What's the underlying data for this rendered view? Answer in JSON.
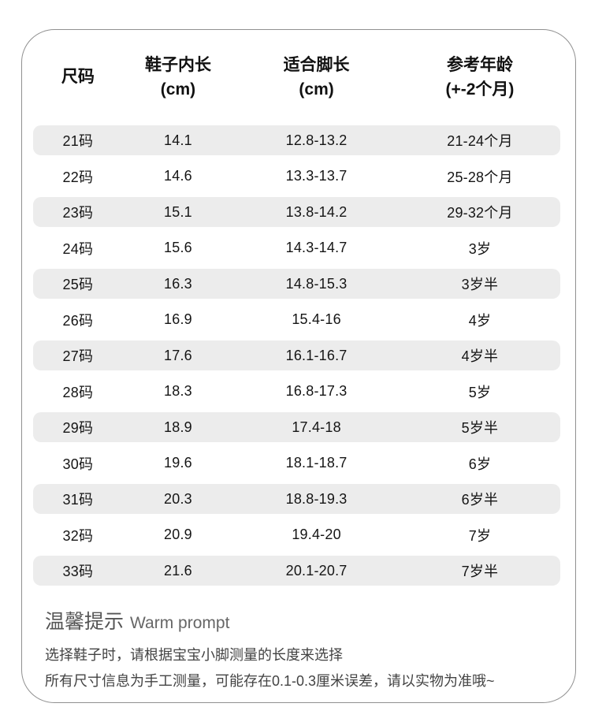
{
  "table": {
    "headers": [
      "尺码",
      "鞋子内长\n(cm)",
      "适合脚长\n(cm)",
      "参考年龄\n(+-2个月)"
    ],
    "rows": [
      {
        "size": "21码",
        "inner_length": "14.1",
        "foot_length": "12.8-13.2",
        "age": "21-24个月"
      },
      {
        "size": "22码",
        "inner_length": "14.6",
        "foot_length": "13.3-13.7",
        "age": "25-28个月"
      },
      {
        "size": "23码",
        "inner_length": "15.1",
        "foot_length": "13.8-14.2",
        "age": "29-32个月"
      },
      {
        "size": "24码",
        "inner_length": "15.6",
        "foot_length": "14.3-14.7",
        "age": "3岁"
      },
      {
        "size": "25码",
        "inner_length": "16.3",
        "foot_length": "14.8-15.3",
        "age": "3岁半"
      },
      {
        "size": "26码",
        "inner_length": "16.9",
        "foot_length": "15.4-16",
        "age": "4岁"
      },
      {
        "size": "27码",
        "inner_length": "17.6",
        "foot_length": "16.1-16.7",
        "age": "4岁半"
      },
      {
        "size": "28码",
        "inner_length": "18.3",
        "foot_length": "16.8-17.3",
        "age": "5岁"
      },
      {
        "size": "29码",
        "inner_length": "18.9",
        "foot_length": "17.4-18",
        "age": "5岁半"
      },
      {
        "size": "30码",
        "inner_length": "19.6",
        "foot_length": "18.1-18.7",
        "age": "6岁"
      },
      {
        "size": "31码",
        "inner_length": "20.3",
        "foot_length": "18.8-19.3",
        "age": "6岁半"
      },
      {
        "size": "32码",
        "inner_length": "20.9",
        "foot_length": "19.4-20",
        "age": "7岁"
      },
      {
        "size": "33码",
        "inner_length": "21.6",
        "foot_length": "20.1-20.7",
        "age": "7岁半"
      }
    ]
  },
  "footer": {
    "title_zh": "温馨提示",
    "title_en": "Warm prompt",
    "lines": [
      "选择鞋子时，请根据宝宝小脚测量的长度来选择",
      "所有尺寸信息为手工测量，可能存在0.1-0.3厘米误差，请以实物为准哦~"
    ]
  },
  "colors": {
    "row_band": "#ececec",
    "card_border": "#909090",
    "table_text": "#151515",
    "footer_text": "#434343",
    "footer_title": "#555555"
  }
}
